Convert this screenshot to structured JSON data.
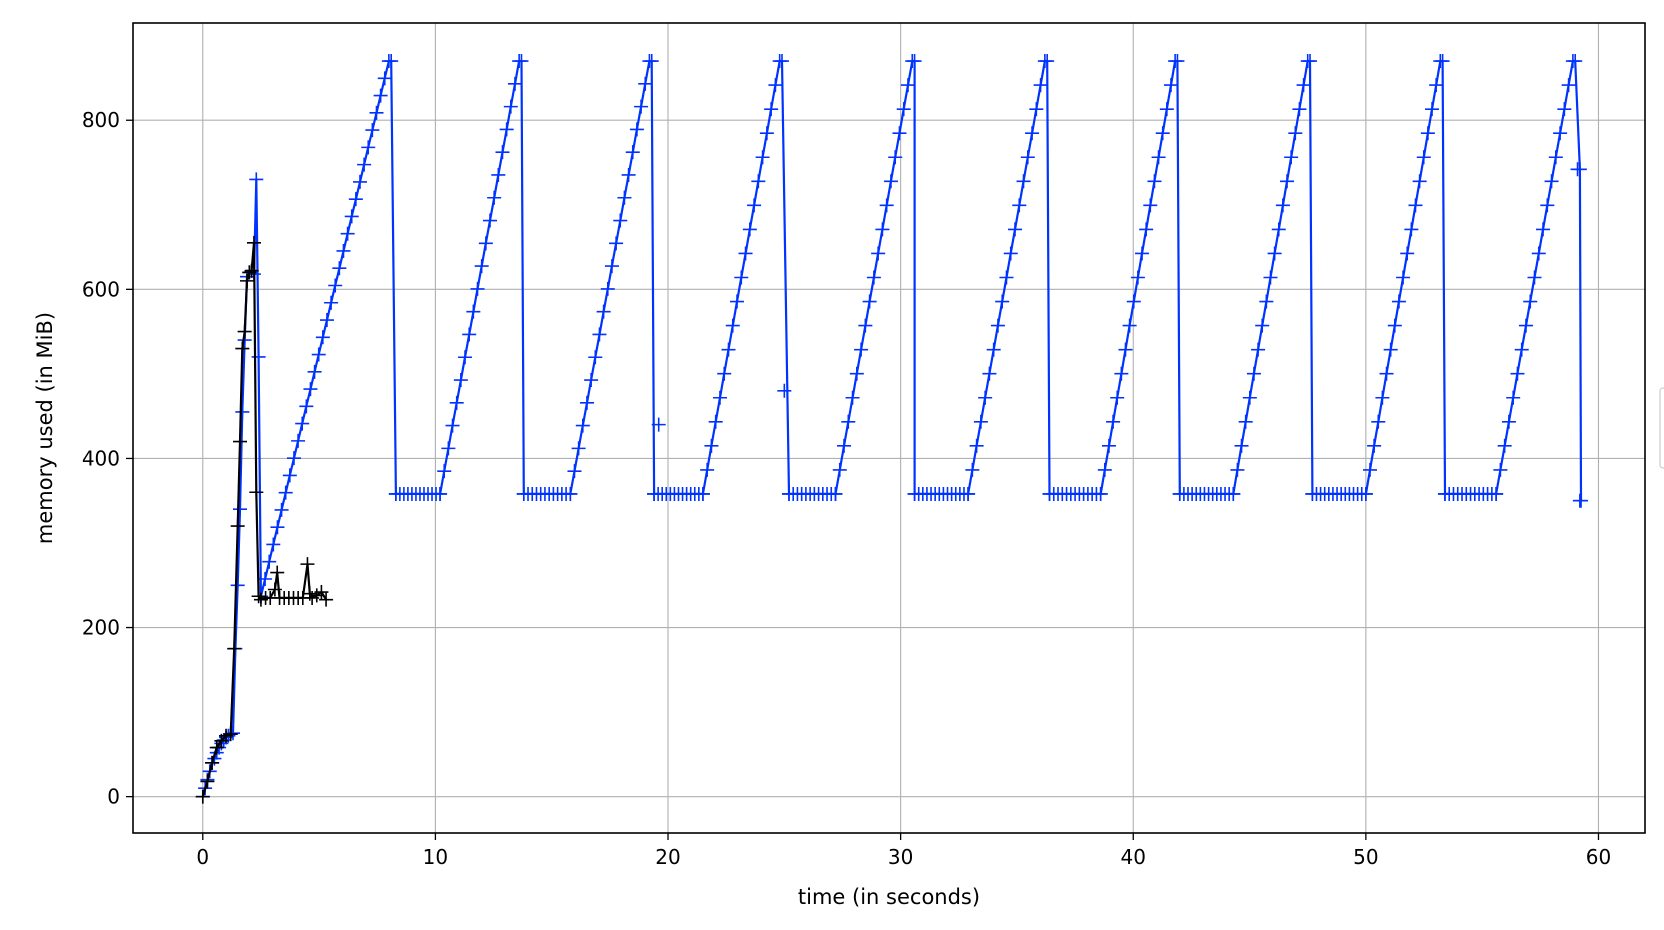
{
  "chart_data": {
    "type": "line",
    "title": "",
    "xlabel": "time (in seconds)",
    "ylabel": "memory used (in MiB)",
    "xlim": [
      -3,
      62
    ],
    "ylim": [
      -43,
      915
    ],
    "xticks": [
      0,
      10,
      20,
      30,
      40,
      50,
      60
    ],
    "yticks": [
      0,
      200,
      400,
      600,
      800
    ],
    "grid": true,
    "marker": "+",
    "legend_placement": "right (cut off)",
    "series": [
      {
        "color": "#0033ff",
        "sawtooth": {
          "initial": {
            "x": [
              0,
              0.1,
              0.2,
              0.3,
              0.4,
              0.5,
              0.6,
              0.7,
              0.8,
              0.9,
              1.0,
              1.1,
              1.2,
              1.3,
              1.4,
              1.5,
              1.6,
              1.7,
              1.8,
              1.9,
              2.0,
              2.1,
              2.2,
              2.3,
              2.4,
              2.5
            ],
            "y": [
              0,
              10,
              20,
              30,
              40,
              45,
              52,
              58,
              63,
              67,
              70,
              72,
              74,
              75,
              175,
              250,
              340,
              455,
              540,
              615,
              620,
              622,
              618,
              730,
              520,
              237
            ]
          },
          "climb_start": [
            2.5,
            237
          ],
          "first_ramp_end": [
            8.0,
            870
          ],
          "peak_times": [
            8.0,
            13.6,
            19.2,
            24.8,
            30.5,
            36.2,
            41.8,
            47.5,
            53.2,
            58.9
          ],
          "peak_value": 870,
          "drop_times": [
            8.3,
            13.8,
            19.4,
            25.2,
            30.6,
            36.4,
            42.0,
            47.7,
            53.4,
            59.2
          ],
          "plateau_value": 358,
          "ramp_start_times": [
            10.2,
            15.8,
            21.5,
            27.2,
            32.9,
            38.6,
            44.3,
            50.0,
            55.6
          ],
          "stray_points": [
            [
              19.6,
              440
            ],
            [
              25.0,
              480
            ],
            [
              59.1,
              742
            ],
            [
              59.2,
              350
            ]
          ]
        }
      },
      {
        "color": "#000000",
        "x": [
          0,
          0.2,
          0.4,
          0.6,
          0.8,
          1.0,
          1.2,
          1.35,
          1.5,
          1.6,
          1.7,
          1.8,
          1.9,
          2.0,
          2.1,
          2.2,
          2.3,
          2.4,
          2.5,
          2.7,
          2.9,
          3.1,
          3.2,
          3.3,
          3.5,
          3.7,
          3.9,
          4.1,
          4.3,
          4.5,
          4.6,
          4.7,
          4.9,
          5.1,
          5.3
        ],
        "y": [
          0,
          18,
          40,
          58,
          66,
          72,
          74,
          175,
          320,
          420,
          530,
          550,
          610,
          620,
          622,
          655,
          360,
          237,
          233,
          235,
          235,
          245,
          265,
          235,
          235,
          235,
          235,
          235,
          235,
          275,
          240,
          235,
          238,
          242,
          233
        ]
      }
    ]
  }
}
